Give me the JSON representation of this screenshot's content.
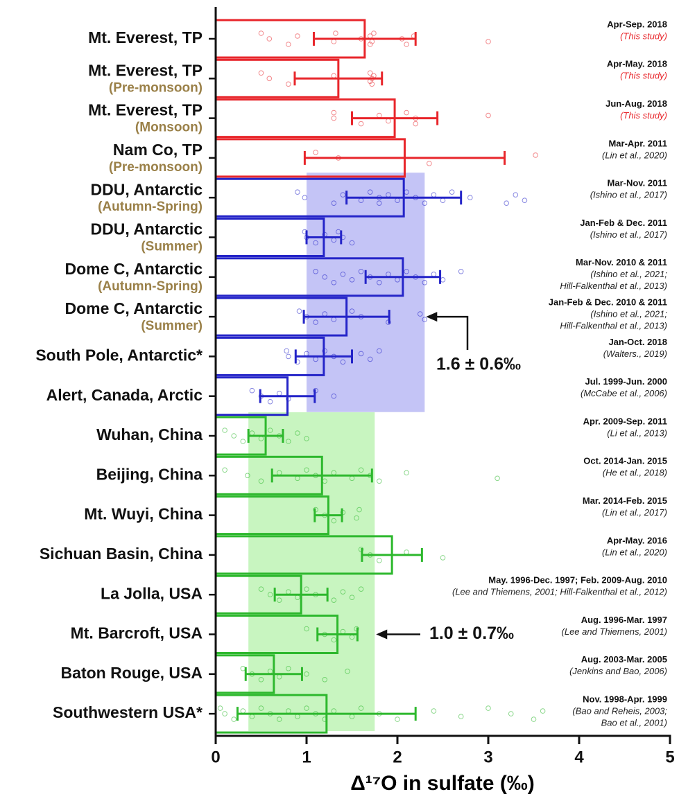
{
  "chart_data": {
    "type": "bar",
    "orientation": "horizontal",
    "xlabel": "Δ¹⁷O in sulfate (‰)",
    "xlim": [
      0,
      5
    ],
    "xticks": [
      0,
      1,
      2,
      3,
      4,
      5
    ],
    "categories": [
      "Mt. Everest, TP",
      "Mt. Everest, TP",
      "Mt. Everest, TP",
      "Nam Co, TP",
      "DDU, Antarctic",
      "DDU, Antarctic",
      "Dome C, Antarctic",
      "Dome C, Antarctic",
      "South Pole, Antarctic*",
      "Alert, Canada, Arctic",
      "Wuhan, China",
      "Beijing, China",
      "Mt. Wuyi, China",
      "Sichuan Basin, China",
      "La Jolla, USA",
      "Mt. Barcroft, USA",
      "Baton Rouge, USA",
      "Southwestern USA*"
    ],
    "sublabels": [
      null,
      "(Pre-monsoon)",
      "(Monsoon)",
      "(Pre-monsoon)",
      "(Autumn-Spring)",
      "(Summer)",
      "(Autumn-Spring)",
      "(Summer)",
      null,
      null,
      null,
      null,
      null,
      null,
      null,
      null,
      null,
      null
    ],
    "values": [
      1.64,
      1.35,
      1.97,
      2.08,
      2.07,
      1.19,
      2.06,
      1.44,
      1.19,
      0.79,
      0.55,
      1.17,
      1.24,
      1.94,
      0.94,
      1.34,
      0.64,
      1.22
    ],
    "errors": [
      0.56,
      0.48,
      0.47,
      1.1,
      0.63,
      0.19,
      0.41,
      0.47,
      0.31,
      0.3,
      0.19,
      0.55,
      0.15,
      0.33,
      0.29,
      0.22,
      0.31,
      0.98
    ],
    "colors": [
      "#e8262b",
      "#e8262b",
      "#e8262b",
      "#e8262b",
      "#2424c8",
      "#2424c8",
      "#2424c8",
      "#2424c8",
      "#2424c8",
      "#2424c8",
      "#2db82d",
      "#2db82d",
      "#2db82d",
      "#2db82d",
      "#2db82d",
      "#2db82d",
      "#2db82d",
      "#2db82d"
    ],
    "points": [
      [
        0.5,
        0.59,
        0.8,
        0.9,
        1.3,
        1.32,
        1.6,
        1.7,
        1.7,
        1.72,
        1.74,
        2.05,
        2.1,
        2.18,
        3.0
      ],
      [
        0.5,
        0.59,
        0.8,
        1.3,
        1.7,
        1.7,
        1.72,
        1.72,
        1.74
      ],
      [
        1.3,
        1.3,
        1.6,
        1.8,
        1.9,
        2.1,
        2.2,
        2.2,
        3.0
      ],
      [
        1.1,
        1.35,
        2.35,
        3.52
      ],
      [
        0.9,
        0.98,
        1.3,
        1.4,
        1.6,
        1.7,
        1.8,
        1.8,
        1.9,
        2.0,
        2.1,
        2.2,
        2.3,
        2.4,
        2.5,
        2.6,
        2.8,
        3.2,
        3.3,
        3.4
      ],
      [
        0.98,
        1.0,
        1.1,
        1.2,
        1.3,
        1.35,
        1.4,
        1.5
      ],
      [
        1.1,
        1.2,
        1.3,
        1.4,
        1.5,
        1.6,
        1.7,
        1.8,
        1.9,
        2.0,
        2.1,
        2.2,
        2.3,
        2.4,
        2.5,
        2.7
      ],
      [
        0.92,
        1.0,
        1.1,
        1.2,
        1.3,
        1.5,
        1.6,
        1.9,
        2.25,
        2.3
      ],
      [
        0.78,
        0.8,
        0.9,
        1.0,
        1.1,
        1.2,
        1.3,
        1.4,
        1.6,
        1.7,
        1.8
      ],
      [
        0.4,
        0.5,
        0.6,
        0.7,
        0.8,
        1.1,
        1.3
      ],
      [
        0.1,
        0.2,
        0.3,
        0.4,
        0.5,
        0.6,
        0.7,
        0.8,
        0.9,
        1.0
      ],
      [
        0.1,
        0.35,
        0.5,
        0.7,
        0.9,
        1.0,
        1.1,
        1.2,
        1.3,
        1.5,
        1.6,
        1.7,
        1.8,
        2.1,
        3.1
      ],
      [
        1.1,
        1.2,
        1.3,
        1.4,
        1.55,
        1.58
      ],
      [
        1.6,
        1.7,
        1.8,
        2.1,
        2.5
      ],
      [
        0.5,
        0.6,
        0.7,
        0.8,
        0.9,
        1.0,
        1.1,
        1.3,
        1.4,
        1.5,
        1.6
      ],
      [
        1.0,
        1.2,
        1.3,
        1.4,
        1.5,
        1.55
      ],
      [
        0.3,
        0.4,
        0.5,
        0.6,
        0.7,
        0.8,
        1.0,
        1.2,
        1.45
      ],
      [
        0.05,
        0.1,
        0.2,
        0.3,
        0.4,
        0.5,
        0.6,
        0.7,
        0.8,
        0.9,
        1.0,
        1.1,
        1.2,
        1.3,
        1.5,
        1.6,
        1.8,
        2.0,
        2.4,
        2.7,
        3.0,
        3.25,
        3.5,
        3.6
      ]
    ],
    "periods": [
      "Apr-Sep. 2018",
      "Apr-May. 2018",
      "Jun-Aug. 2018",
      "Mar-Apr. 2011",
      "Mar-Nov. 2011",
      "Jan-Feb & Dec. 2011",
      "Mar-Nov. 2010 & 2011",
      "Jan-Feb & Dec. 2010 & 2011",
      "Jan-Oct. 2018",
      "Jul. 1999-Jun. 2000",
      "Apr. 2009-Sep. 2011",
      "Oct. 2014-Jan. 2015",
      "Mar. 2014-Feb. 2015",
      "Apr-May. 2016",
      "May. 1996-Dec. 1997; Feb. 2009-Aug. 2010",
      "Aug. 1996-Mar. 1997",
      "Aug. 2003-Mar. 2005",
      "Nov. 1998-Apr. 1999"
    ],
    "references": [
      [
        "(This study)"
      ],
      [
        "(This study)"
      ],
      [
        "(This study)"
      ],
      [
        "(Lin et al., 2020)"
      ],
      [
        "(Ishino et al., 2017)"
      ],
      [
        "(Ishino et al., 2017)"
      ],
      [
        "(Ishino et al., 2021;",
        "Hill-Falkenthal et al., 2013)"
      ],
      [
        "(Ishino et al., 2021;",
        "Hill-Falkenthal et al., 2013)"
      ],
      [
        "(Walters., 2019)"
      ],
      [
        "(McCabe et al., 2006)"
      ],
      [
        "(Li et al., 2013)"
      ],
      [
        "(He et al., 2018)"
      ],
      [
        "(Lin et al., 2017)"
      ],
      [
        "(Lin et al., 2020)"
      ],
      [
        "(Lee and Thiemens, 2001;  Hill-Falkenthal et al., 2012)"
      ],
      [
        "(Lee and Thiemens, 2001)"
      ],
      [
        "(Jenkins and Bao, 2006)"
      ],
      [
        "(Bao and Reheis, 2003;",
        "Bao et al., 2001)"
      ]
    ],
    "reference_colors": [
      "#e8262b",
      "#e8262b",
      "#e8262b",
      "#222222",
      "#222222",
      "#222222",
      "#222222",
      "#222222",
      "#222222",
      "#222222",
      "#222222",
      "#222222",
      "#222222",
      "#222222",
      "#222222",
      "#222222",
      "#222222",
      "#222222"
    ],
    "bands": [
      {
        "range": [
          1.0,
          2.3
        ],
        "rows": [
          4,
          9
        ],
        "color": "#c4c4f6",
        "label": "1.6 ± 0.6‰"
      },
      {
        "range": [
          0.36,
          1.75
        ],
        "rows": [
          10,
          17
        ],
        "color": "#c8f5c0",
        "label": "1.0 ± 0.7‰"
      }
    ]
  }
}
